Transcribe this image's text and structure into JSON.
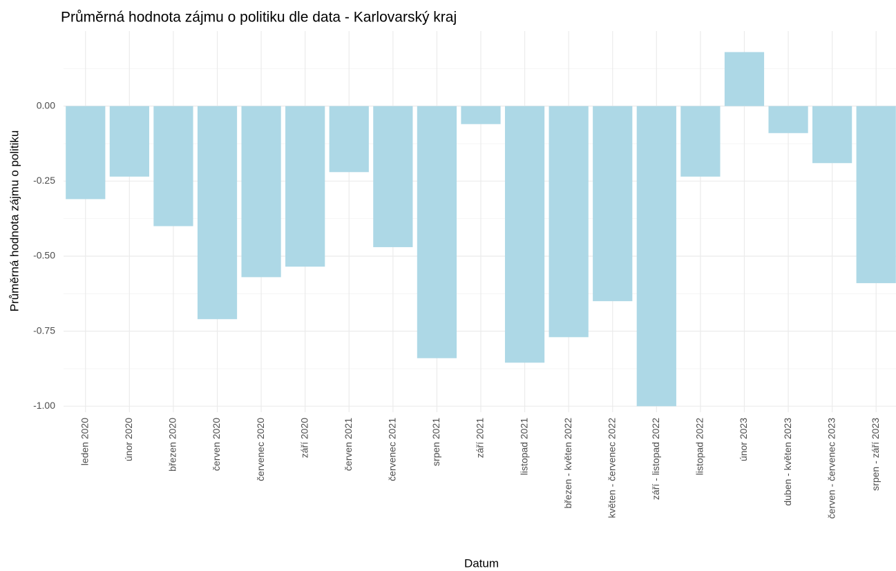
{
  "chart_data": {
    "type": "bar",
    "title": "Průměrná hodnota zájmu o politiku dle data - Karlovarský kraj",
    "x_label": "Datum",
    "y_label": "Průměrná hodnota zájmu o politiku",
    "categories": [
      "leden 2020",
      "únor 2020",
      "březen 2020",
      "červen 2020",
      "červenec 2020",
      "září 2020",
      "červen 2021",
      "červenec 2021",
      "srpen 2021",
      "září 2021",
      "listopad 2021",
      "březen - květen 2022",
      "květen - červenec 2022",
      "září - listopad 2022",
      "listopad 2022",
      "únor 2023",
      "duben - květen 2023",
      "červen - červenec 2023",
      "srpen - září 2023"
    ],
    "values": [
      -0.31,
      -0.235,
      -0.4,
      -0.71,
      -0.57,
      -0.535,
      -0.22,
      -0.47,
      -0.84,
      -0.06,
      -0.855,
      -0.77,
      -0.65,
      -1.0,
      -0.235,
      0.18,
      -0.09,
      -0.19,
      -0.59
    ],
    "color": "#add8e6",
    "ylim": [
      -1.02,
      0.25
    ],
    "yticks": [
      {
        "value": -1,
        "label": "-1.00"
      },
      {
        "value": -0.75,
        "label": "-0.75"
      },
      {
        "value": -0.5,
        "label": "-0.50"
      },
      {
        "value": -0.25,
        "label": "-0.25"
      },
      {
        "value": 0,
        "label": "0.00"
      }
    ],
    "grid": true
  }
}
